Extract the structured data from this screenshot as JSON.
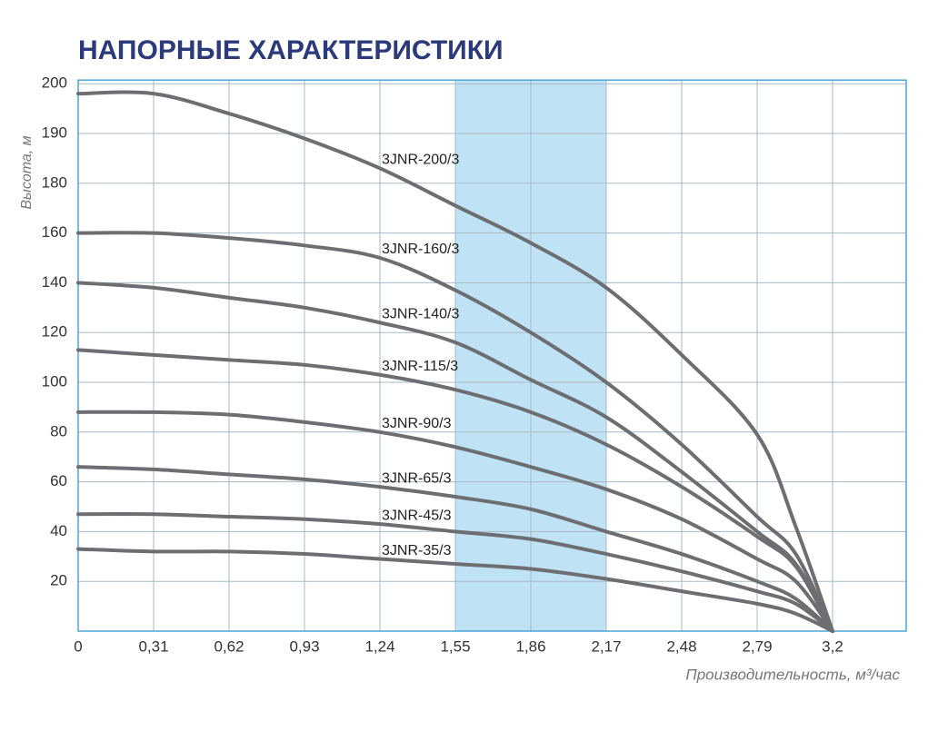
{
  "chart_data": {
    "type": "line",
    "title": "НАПОРНЫЕ ХАРАКТЕРИСТИКИ",
    "y_label": "Высота, м",
    "x_label": "Производительность, м³/час",
    "x": [
      0,
      0.31,
      0.62,
      0.93,
      1.24,
      1.55,
      1.86,
      2.17,
      2.48,
      2.79,
      3.0,
      3.2
    ],
    "series": [
      {
        "name": "3JNR-200/3",
        "color": "#6d6e71",
        "values": [
          198,
          198,
          194,
          189,
          183,
          171,
          156,
          138,
          111,
          79,
          42,
          0
        ]
      },
      {
        "name": "3JNR-160/3",
        "color": "#6d6e71",
        "values": [
          160,
          160,
          158,
          155,
          150,
          137,
          120,
          100,
          75,
          46,
          31,
          0
        ]
      },
      {
        "name": "3JNR-140/3",
        "color": "#6d6e71",
        "values": [
          140,
          138,
          134,
          130,
          124,
          116,
          101,
          86,
          64,
          40,
          27,
          0
        ]
      },
      {
        "name": "3JNR-115/3",
        "color": "#6d6e71",
        "values": [
          113,
          111,
          109,
          107,
          103,
          97,
          88,
          75,
          58,
          38,
          26,
          0
        ]
      },
      {
        "name": "3JNR-90/3",
        "color": "#6d6e71",
        "values": [
          88,
          88,
          87,
          84,
          80,
          74,
          66,
          57,
          45,
          29,
          20,
          0
        ]
      },
      {
        "name": "3JNR-65/3",
        "color": "#6d6e71",
        "values": [
          66,
          65,
          63,
          61,
          58,
          54,
          49,
          40,
          31,
          20,
          13,
          0
        ]
      },
      {
        "name": "3JNR-45/3",
        "color": "#6d6e71",
        "values": [
          47,
          47,
          46,
          45,
          43,
          40,
          37,
          31,
          24,
          16,
          11,
          0
        ]
      },
      {
        "name": "3JNR-35/3",
        "color": "#6d6e71",
        "values": [
          33,
          32,
          32,
          31,
          29,
          27,
          25,
          21,
          16,
          11,
          7,
          0
        ]
      }
    ],
    "highlight": [
      1.55,
      2.17
    ],
    "highlight_color": "#bfe3f5",
    "xlim": [
      0,
      3.6
    ],
    "ylim": [
      0,
      200
    ],
    "xticks": [
      0,
      {
        "value": 0.31,
        "label": "0,31"
      },
      {
        "value": 0.62,
        "label": "0,62"
      },
      {
        "value": 0.93,
        "label": "0,93"
      },
      {
        "value": 1.24,
        "label": "1,24"
      },
      {
        "value": 1.55,
        "label": "1,55"
      },
      {
        "value": 1.86,
        "label": "1,86"
      },
      {
        "value": 2.17,
        "label": "2,17"
      },
      {
        "value": 2.48,
        "label": "2,48"
      },
      {
        "value": 2.79,
        "label": "2,79"
      },
      {
        "value": 3.2,
        "label": "3,2"
      }
    ],
    "yticks": [
      20,
      40,
      60,
      80,
      100,
      120,
      140,
      160,
      180,
      190,
      200
    ],
    "grid": true
  }
}
